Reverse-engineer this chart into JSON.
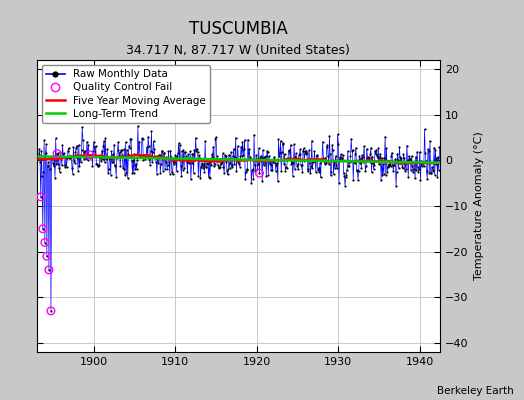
{
  "title": "TUSCUMBIA",
  "subtitle": "34.717 N, 87.717 W (United States)",
  "ylabel": "Temperature Anomaly (°C)",
  "credit": "Berkeley Earth",
  "xlim": [
    1893.0,
    1942.5
  ],
  "ylim": [
    -42,
    22
  ],
  "yticks": [
    -40,
    -30,
    -20,
    -10,
    0,
    10,
    20
  ],
  "xticks": [
    1900,
    1910,
    1920,
    1930,
    1940
  ],
  "fig_bg_color": "#c8c8c8",
  "plot_bg_color": "#ffffff",
  "raw_color": "#0000ff",
  "dot_color": "#000000",
  "qc_color": "#ff00ff",
  "moving_avg_color": "#ff0000",
  "trend_color": "#00cc00",
  "title_fontsize": 12,
  "subtitle_fontsize": 9,
  "ylabel_fontsize": 8,
  "tick_fontsize": 8,
  "legend_fontsize": 7.5,
  "credit_fontsize": 7.5
}
